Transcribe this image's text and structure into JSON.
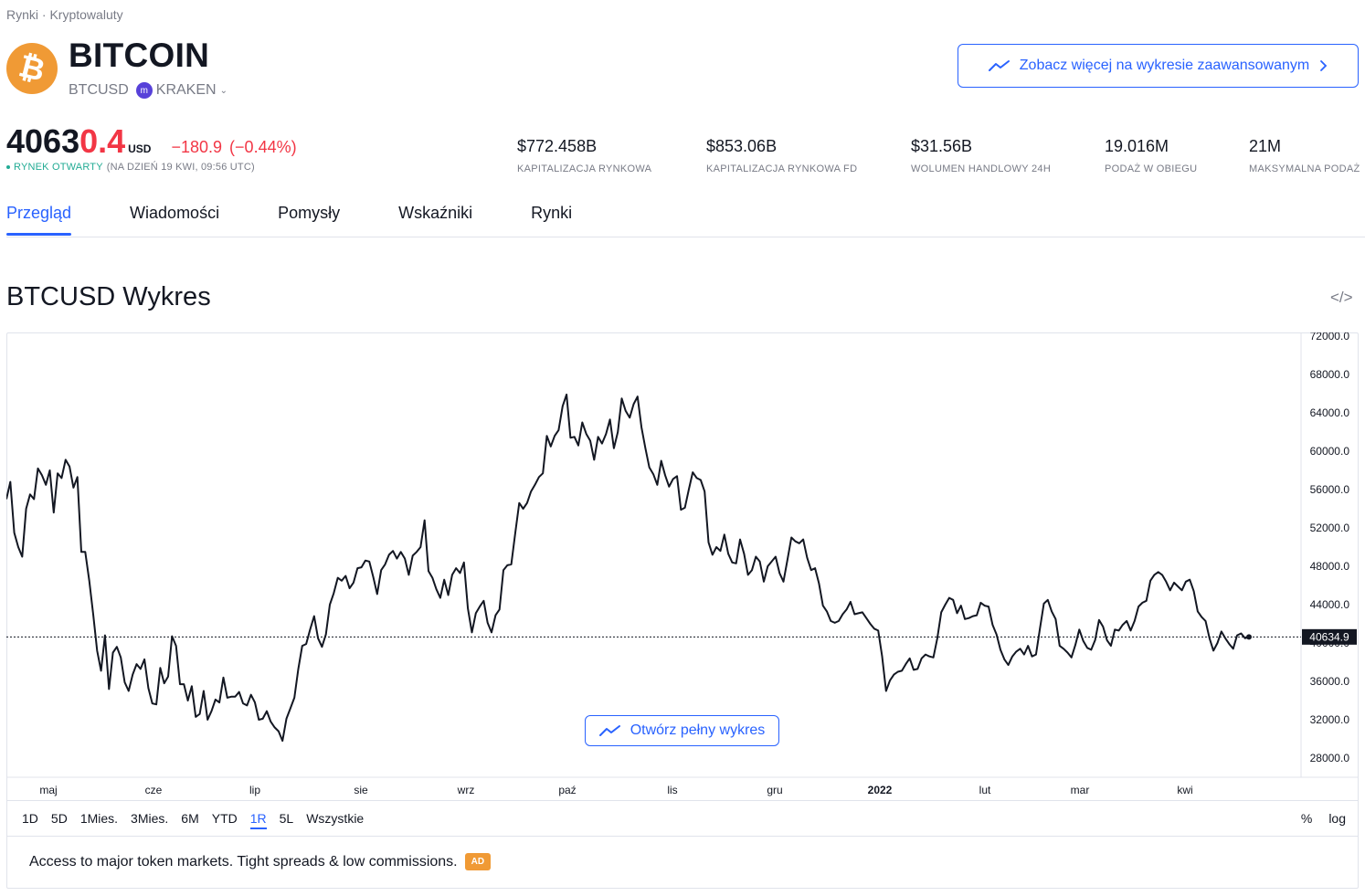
{
  "breadcrumb": {
    "part1": "Rynki",
    "sep": "·",
    "part2": "Kryptowaluty"
  },
  "header": {
    "logo_symbol": "₿",
    "title": "BITCOIN",
    "symbol": "BTCUSD",
    "exchange_icon": "kraken-icon",
    "exchange": "KRAKEN",
    "advanced_button": "Zobacz więcej na wykresie zaawansowanym"
  },
  "quote": {
    "price_main": "4063",
    "price_last": "0.4",
    "currency": "USD",
    "change": "−180.9",
    "change_pct": "(−0.44%)",
    "status_open": "RYNEK OTWARTY",
    "status_date": "(NA DZIEŃ 19 KWI, 09:56 UTC)"
  },
  "stats": [
    {
      "value": "$772.458B",
      "label": "KAPITALIZACJA RYNKOWA"
    },
    {
      "value": "$853.06B",
      "label": "KAPITALIZACJA RYNKOWA FD"
    },
    {
      "value": "$31.56B",
      "label": "WOLUMEN HANDLOWY 24H"
    },
    {
      "value": "19.016M",
      "label": "PODAŻ W OBIEGU"
    },
    {
      "value": "21M",
      "label": "MAKSYMALNA PODAŻ"
    }
  ],
  "tabs": [
    "Przegląd",
    "Wiadomości",
    "Pomysły",
    "Wskaźniki",
    "Rynki"
  ],
  "chart_section": {
    "title": "BTCUSD Wykres",
    "open_full_button": "Otwórz pełny wykres"
  },
  "range_buttons": [
    "1D",
    "5D",
    "1Mies.",
    "3Mies.",
    "6M",
    "YTD",
    "1R",
    "5L",
    "Wszystkie"
  ],
  "active_range": "1R",
  "scale_buttons": [
    "%",
    "log"
  ],
  "ad": {
    "text": "Access to major token markets. Tight spreads & low commissions.",
    "badge": "AD"
  },
  "colors": {
    "accent": "#2962ff",
    "down": "#f23645",
    "open": "#22ab94",
    "logo": "#f09a35"
  },
  "chart_data": {
    "type": "line",
    "ylim": [
      27000,
      72500
    ],
    "y_ticks": [
      "72000.0",
      "68000.0",
      "64000.0",
      "60000.0",
      "56000.0",
      "52000.0",
      "48000.0",
      "44000.0",
      "40000.0",
      "36000.0",
      "32000.0",
      "28000.0"
    ],
    "x_labels": [
      "maj",
      "cze",
      "lip",
      "sie",
      "wrz",
      "paź",
      "lis",
      "gru",
      "2022",
      "lut",
      "mar",
      "kwi"
    ],
    "last_value_label": "40634.9",
    "last_value": 40634.9,
    "series": [
      {
        "values": [
          55000,
          56800,
          51500,
          50000,
          49000,
          54000,
          55500,
          55000,
          58200,
          57500,
          56500,
          58000,
          53600,
          57700,
          57200,
          59100,
          58400,
          56200,
          57300,
          49500,
          49500,
          46500,
          43000,
          39200,
          37100,
          40800,
          35200,
          39000,
          39600,
          38500,
          35900,
          35000,
          36700,
          37800,
          37300,
          38300,
          35300,
          33700,
          33600,
          37400,
          35800,
          36500,
          40700,
          39700,
          35700,
          35700,
          34000,
          35500,
          32300,
          32600,
          35000,
          32000,
          32900,
          34100,
          33800,
          36400,
          34300,
          34400,
          34400,
          34900,
          33700,
          33500,
          34600,
          33800,
          32000,
          32100,
          32900,
          31800,
          31200,
          30800,
          29800,
          32100,
          33200,
          34300,
          37300,
          39700,
          39900,
          41400,
          42800,
          40500,
          39600,
          40900,
          44000,
          45200,
          46800,
          46500,
          47000,
          45700,
          46300,
          47800,
          47900,
          48600,
          48500,
          46900,
          45100,
          47600,
          48200,
          49200,
          49600,
          48800,
          49500,
          48800,
          47100,
          49100,
          49500,
          50000,
          52800,
          47500,
          46800,
          45600,
          44700,
          46600,
          45000,
          47100,
          47800,
          47300,
          48400,
          43600,
          41100,
          43100,
          43800,
          44400,
          42100,
          41100,
          42900,
          43500,
          47600,
          48100,
          48200,
          51500,
          54600,
          54000,
          54600,
          55800,
          56500,
          57300,
          57700,
          61600,
          60500,
          61600,
          62200,
          64700,
          65900,
          61400,
          61500,
          60600,
          63000,
          61800,
          61100,
          59100,
          61500,
          60800,
          61800,
          63300,
          60300,
          62000,
          65500,
          64200,
          63500,
          64900,
          65700,
          62500,
          60300,
          58300,
          57600,
          56500,
          59000,
          57500,
          56300,
          57100,
          57400,
          53900,
          54100,
          56000,
          57800,
          57200,
          57000,
          55800,
          50500,
          49200,
          50000,
          49600,
          51300,
          49300,
          48400,
          48300,
          50800,
          49300,
          47100,
          47600,
          49000,
          48500,
          46400,
          48000,
          48500,
          49000,
          47300,
          46400,
          48700,
          51000,
          50600,
          50400,
          50800,
          48900,
          47600,
          47800,
          46200,
          43900,
          43300,
          42300,
          42100,
          42300,
          43000,
          43500,
          44300,
          43000,
          43100,
          43200,
          42600,
          42000,
          41500,
          41300,
          38600,
          35000,
          36100,
          36700,
          37000,
          37100,
          37800,
          38400,
          37200,
          37300,
          38400,
          38800,
          38600,
          38500,
          40500,
          43200,
          44000,
          44700,
          44500,
          43100,
          43900,
          42500,
          42600,
          42800,
          42900,
          44200,
          43900,
          43800,
          41900,
          40900,
          39300,
          38300,
          37700,
          38600,
          39100,
          39400,
          38800,
          39700,
          38600,
          38800,
          41500,
          44100,
          44500,
          43300,
          42500,
          39700,
          39400,
          39000,
          38500,
          39800,
          41400,
          40200,
          39500,
          39300,
          40300,
          42400,
          41700,
          40300,
          39700,
          41400,
          41300,
          41900,
          42300,
          41300,
          42300,
          43800,
          44200,
          44400,
          46500,
          47100,
          47400,
          47100,
          46400,
          45500,
          46300,
          45900,
          45500,
          46400,
          46600,
          45400,
          43300,
          42700,
          42300,
          40500,
          39200,
          40000,
          41200,
          40500,
          39900,
          39400,
          40800,
          41000,
          40500,
          40634.9
        ]
      }
    ]
  }
}
